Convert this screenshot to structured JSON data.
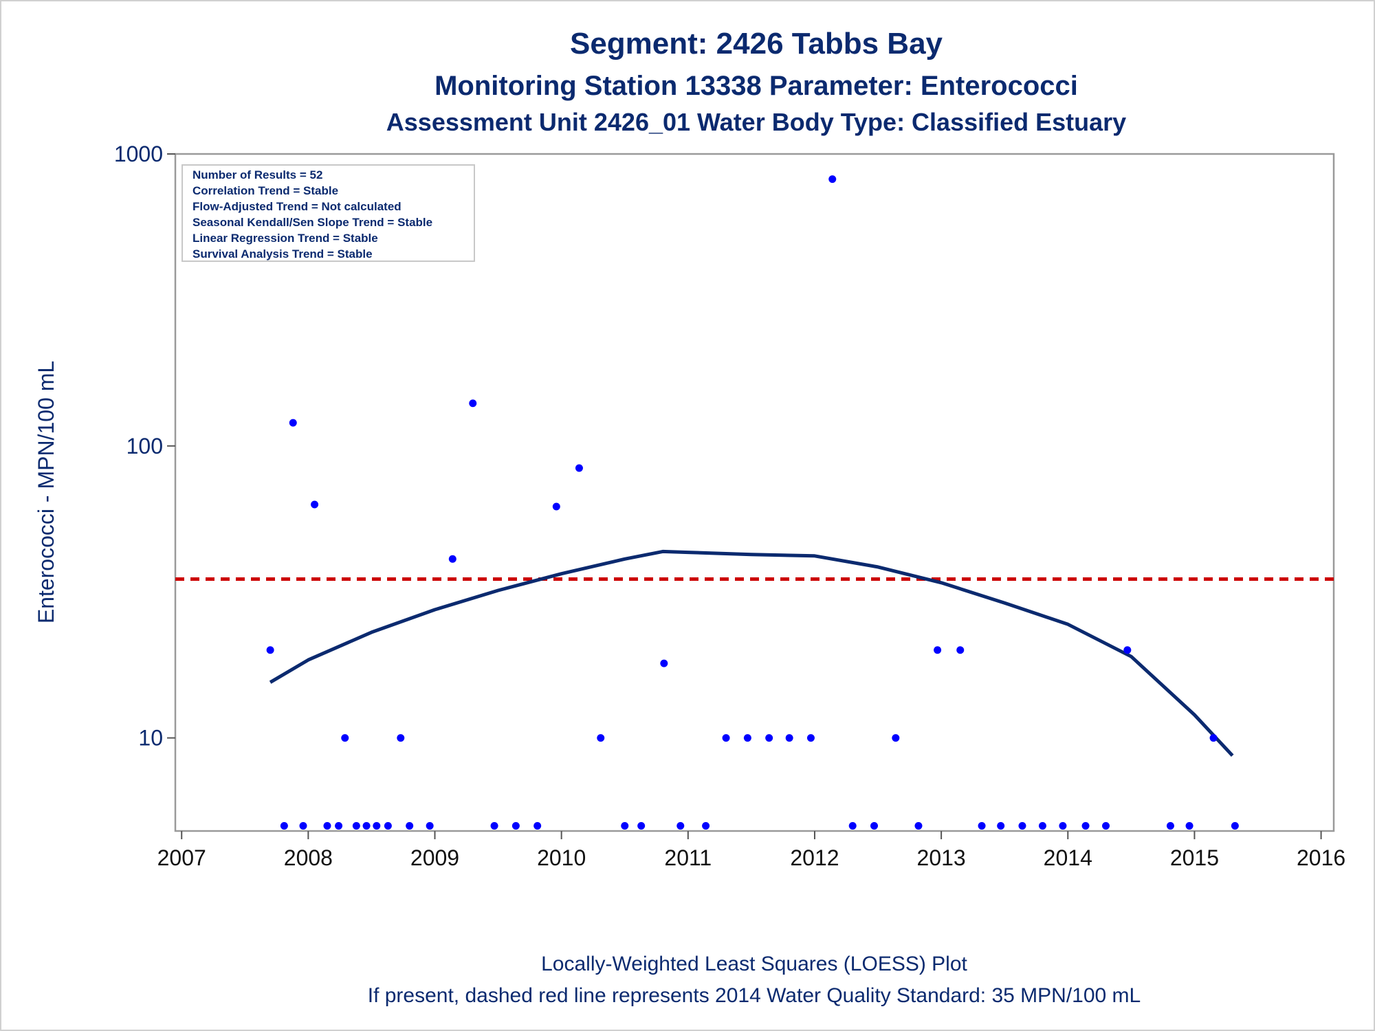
{
  "chart_data": {
    "type": "scatter",
    "title": "Segment: 2426  Tabbs Bay",
    "subtitle": "Monitoring Station 13338 Parameter: Enterococci",
    "subtitle2": "Assessment Unit 2426_01   Water Body Type: Classified Estuary",
    "ylabel": "Enterococci - MPN/100 mL",
    "xlabel": "",
    "footnotes": [
      "Locally-Weighted Least Squares (LOESS) Plot",
      "If present, dashed red line represents 2014 Water Quality Standard: 35 MPN/100 mL"
    ],
    "y_scale": "log",
    "ylim": [
      4.8,
      1000
    ],
    "xlim": [
      2006.95,
      2016.1
    ],
    "x_ticks": [
      2007,
      2008,
      2009,
      2010,
      2011,
      2012,
      2013,
      2014,
      2015,
      2016
    ],
    "y_ticks": [
      10,
      100,
      1000
    ],
    "grid": false,
    "stats_box": {
      "lines": [
        "Number of Results = 52",
        "Correlation Trend = Stable",
        "Flow-Adjusted Trend = Not calculated",
        "Seasonal Kendall/Sen Slope Trend = Stable",
        "Linear Regression Trend = Stable",
        "Survival Analysis Trend = Stable"
      ],
      "placement": "top-left"
    },
    "standard_line": {
      "value": 35,
      "color": "#cc0000",
      "style": "dashed"
    },
    "series": [
      {
        "kind": "points",
        "color": "#0000ff",
        "x": [
          2007.7,
          2007.81,
          2007.88,
          2007.96,
          2008.05,
          2008.15,
          2008.24,
          2008.29,
          2008.38,
          2008.46,
          2008.54,
          2008.63,
          2008.73,
          2008.8,
          2008.96,
          2009.14,
          2009.3,
          2009.47,
          2009.64,
          2009.81,
          2009.96,
          2010.14,
          2010.31,
          2010.5,
          2010.63,
          2010.81,
          2010.94,
          2011.14,
          2011.3,
          2011.47,
          2011.64,
          2011.8,
          2011.97,
          2012.14,
          2012.3,
          2012.47,
          2012.64,
          2012.82,
          2012.97,
          2013.15,
          2013.32,
          2013.47,
          2013.64,
          2013.8,
          2013.96,
          2014.14,
          2014.3,
          2014.47,
          2014.81,
          2014.96,
          2015.15,
          2015.32
        ],
        "y": [
          20,
          5,
          120,
          5,
          63,
          5,
          5,
          10,
          5,
          5,
          5,
          5,
          10,
          5,
          5,
          41,
          140,
          5,
          5,
          5,
          62,
          84,
          10,
          5,
          5,
          18,
          5,
          5,
          10,
          10,
          10,
          10,
          10,
          820,
          5,
          5,
          10,
          5,
          20,
          20,
          5,
          5,
          5,
          5,
          5,
          5,
          5,
          20,
          5,
          5,
          10,
          5
        ]
      },
      {
        "kind": "loess",
        "color": "#0b2a6f",
        "x": [
          2007.7,
          2008.0,
          2008.5,
          2009.0,
          2009.5,
          2010.0,
          2010.5,
          2010.8,
          2011.0,
          2011.5,
          2012.0,
          2012.5,
          2013.0,
          2013.5,
          2014.0,
          2014.5,
          2015.0,
          2015.3
        ],
        "y": [
          15.5,
          18.5,
          23.0,
          27.5,
          32.0,
          36.5,
          41.0,
          43.5,
          43.2,
          42.5,
          42.0,
          38.5,
          34.0,
          29.0,
          24.5,
          19.0,
          12.0,
          8.7
        ]
      }
    ]
  }
}
